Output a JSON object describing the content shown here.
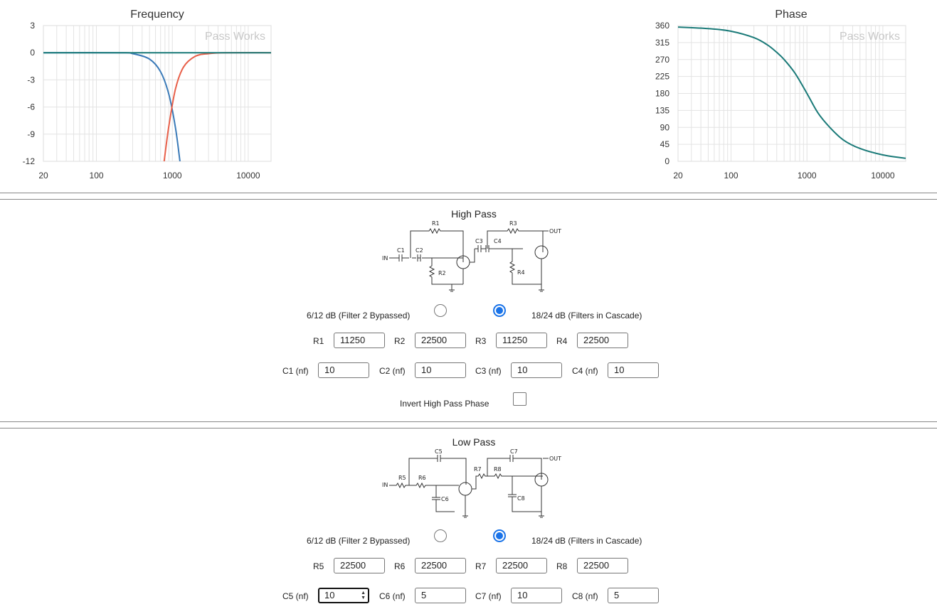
{
  "frequency_chart": {
    "title": "Frequency",
    "watermark": "Pass Works"
  },
  "phase_chart": {
    "title": "Phase",
    "watermark": "Pass Works"
  },
  "chart_data": [
    {
      "type": "line",
      "title": "Frequency",
      "x_scale": "log",
      "xlim": [
        20,
        20000
      ],
      "ylim": [
        -12,
        3
      ],
      "x_ticks": [
        "20",
        "100",
        "1000",
        "10000"
      ],
      "y_ticks": [
        "3",
        "0",
        "-3",
        "-6",
        "-9",
        "-12"
      ],
      "grid": true,
      "series": [
        {
          "color": "#3a7ab8",
          "x": [
            20,
            200,
            300,
            500,
            700,
            900,
            1100,
            1260
          ],
          "y": [
            0,
            0,
            -0.1,
            -0.7,
            -2.1,
            -4.6,
            -8.3,
            -12
          ]
        },
        {
          "color": "#e8604a",
          "x": [
            780,
            900,
            1100,
            1400,
            2000,
            3000,
            5000,
            20000
          ],
          "y": [
            -12,
            -8.1,
            -4.0,
            -1.6,
            -0.4,
            -0.1,
            0,
            0
          ]
        },
        {
          "color": "#1a7a78",
          "x": [
            20,
            20000
          ],
          "y": [
            0,
            0
          ]
        }
      ]
    },
    {
      "type": "line",
      "title": "Phase",
      "x_scale": "log",
      "xlim": [
        20,
        20000
      ],
      "ylim": [
        0,
        360
      ],
      "x_ticks": [
        "20",
        "100",
        "1000",
        "10000"
      ],
      "y_ticks": [
        "360",
        "315",
        "270",
        "225",
        "180",
        "135",
        "90",
        "45",
        "0"
      ],
      "grid": true,
      "series": [
        {
          "color": "#1a7a78",
          "x": [
            20,
            50,
            100,
            200,
            300,
            400,
            500,
            700,
            1000,
            1400,
            2000,
            3000,
            5000,
            10000,
            20000
          ],
          "y": [
            356,
            352,
            345,
            328,
            309,
            289,
            270,
            233,
            180,
            128,
            90,
            57,
            34,
            17,
            8
          ]
        }
      ]
    }
  ],
  "high_pass": {
    "title": "High Pass",
    "schematic": {
      "in": "IN",
      "out": "OUT",
      "r1": "R1",
      "r2": "R2",
      "r3": "R3",
      "r4": "R4",
      "c1": "C1",
      "c2": "C2",
      "c3": "C3",
      "c4": "C4"
    },
    "mode_bypass_label": "6/12 dB (Filter 2 Bypassed)",
    "mode_cascade_label": "18/24 dB (Filters in Cascade)",
    "selected_mode": "cascade",
    "resistors": [
      {
        "label": "R1",
        "value": "11250"
      },
      {
        "label": "R2",
        "value": "22500"
      },
      {
        "label": "R3",
        "value": "11250"
      },
      {
        "label": "R4",
        "value": "22500"
      }
    ],
    "capacitors": [
      {
        "label": "C1 (nf)",
        "value": "10"
      },
      {
        "label": "C2 (nf)",
        "value": "10"
      },
      {
        "label": "C3 (nf)",
        "value": "10"
      },
      {
        "label": "C4 (nf)",
        "value": "10"
      }
    ],
    "invert_label": "Invert High Pass Phase",
    "invert_checked": false
  },
  "low_pass": {
    "title": "Low Pass",
    "schematic": {
      "in": "IN",
      "out": "OUT",
      "r5": "R5",
      "r6": "R6",
      "r7": "R7",
      "r8": "R8",
      "c5": "C5",
      "c6": "C6",
      "c7": "C7",
      "c8": "C8"
    },
    "mode_bypass_label": "6/12 dB (Filter 2 Bypassed)",
    "mode_cascade_label": "18/24 dB (Filters in Cascade)",
    "selected_mode": "cascade",
    "resistors": [
      {
        "label": "R5",
        "value": "22500"
      },
      {
        "label": "R6",
        "value": "22500"
      },
      {
        "label": "R7",
        "value": "22500"
      },
      {
        "label": "R8",
        "value": "22500"
      }
    ],
    "capacitors": [
      {
        "label": "C5 (nf)",
        "value": "10"
      },
      {
        "label": "C6 (nf)",
        "value": "5"
      },
      {
        "label": "C7 (nf)",
        "value": "10"
      },
      {
        "label": "C8 (nf)",
        "value": "5"
      }
    ]
  },
  "colors": {
    "accent": "#1a73e8",
    "hp_curve": "#3a7ab8",
    "lp_curve": "#e8604a",
    "sum_curve": "#1a7a78"
  }
}
